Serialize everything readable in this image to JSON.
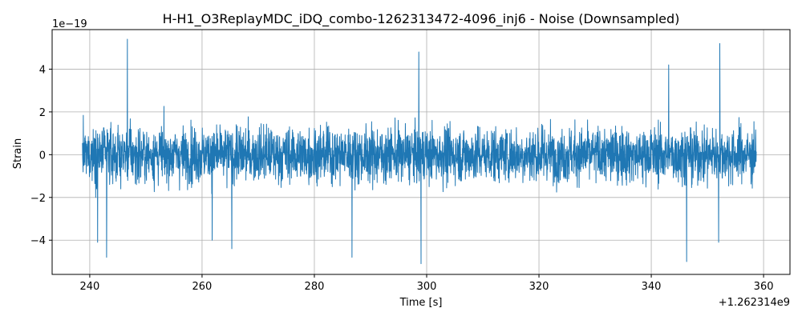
{
  "chart_data": {
    "type": "line",
    "title": "H-H1_O3ReplayMDC_iDQ_combo-1262313472-4096_inj6 - Noise (Downsampled)",
    "xlabel": "Time [s]",
    "ylabel": "Strain",
    "x_offset_label": "+1.262314e9",
    "y_scale_label": "1e−19",
    "xlim": [
      233.3,
      364.7
    ],
    "ylim": [
      -5.6,
      5.85
    ],
    "grid": true,
    "x_ticks": [
      240,
      260,
      280,
      300,
      320,
      340,
      360
    ],
    "x_tick_labels": [
      "240",
      "260",
      "280",
      "300",
      "320",
      "340",
      "360"
    ],
    "y_ticks": [
      -4,
      -2,
      0,
      2,
      4
    ],
    "y_tick_labels": [
      "−4",
      "−2",
      "0",
      "2",
      "4"
    ],
    "series": [
      {
        "color": "#1f77b4",
        "x_range": [
          238.7,
          358.7
        ],
        "typical_amplitude": 2.0,
        "peaks": [
          {
            "x": 246.7,
            "y": 5.4
          },
          {
            "x": 298.6,
            "y": 4.8
          },
          {
            "x": 352.2,
            "y": 5.2
          },
          {
            "x": 343.1,
            "y": 4.2
          },
          {
            "x": 299.0,
            "y": -5.1
          },
          {
            "x": 243.0,
            "y": -4.8
          },
          {
            "x": 286.7,
            "y": -4.8
          },
          {
            "x": 346.3,
            "y": -5.0
          },
          {
            "x": 265.3,
            "y": -4.4
          },
          {
            "x": 241.4,
            "y": -4.1
          },
          {
            "x": 261.8,
            "y": -4.0
          },
          {
            "x": 352.0,
            "y": -4.1
          }
        ]
      }
    ]
  }
}
